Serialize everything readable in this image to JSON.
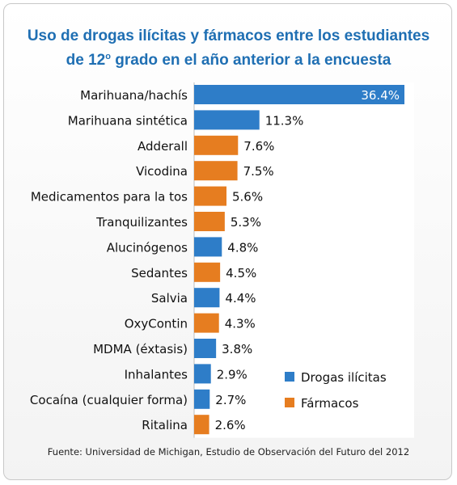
{
  "chart_data": {
    "type": "bar",
    "orientation": "horizontal",
    "title_line1": "Uso de drogas ilícitas y fármacos entre los estudiantes",
    "title_line2_before": "de 12",
    "title_line2_sup": "o",
    "title_line2_after": " grado en el año anterior a la encuesta",
    "categories": [
      "Marihuana/hachís",
      "Marihuana sintética",
      "Adderall",
      "Vicodina",
      "Medicamentos para la tos",
      "Tranquilizantes",
      "Alucinógenos",
      "Sedantes",
      "Salvia",
      "OxyContin",
      "MDMA (éxtasis)",
      "Inhalantes",
      "Cocaína (cualquier forma)",
      "Ritalina"
    ],
    "values": [
      36.4,
      11.3,
      7.6,
      7.5,
      5.6,
      5.3,
      4.8,
      4.5,
      4.4,
      4.3,
      3.8,
      2.9,
      2.7,
      2.6
    ],
    "value_labels": [
      "36.4%",
      "11.3%",
      "7.6%",
      "7.5%",
      "5.6%",
      "5.3%",
      "4.8%",
      "4.5%",
      "4.4%",
      "4.3%",
      "3.8%",
      "2.9%",
      "2.7%",
      "2.6%"
    ],
    "groups": [
      "drogas",
      "drogas",
      "farmacos",
      "farmacos",
      "farmacos",
      "farmacos",
      "drogas",
      "farmacos",
      "drogas",
      "farmacos",
      "drogas",
      "drogas",
      "drogas",
      "farmacos"
    ],
    "xlim": [
      0,
      36.4
    ],
    "legend": {
      "placement": "bottom-right",
      "entries": [
        {
          "key": "drogas",
          "label": "Drogas ilícitas",
          "color": "#2e7dc8"
        },
        {
          "key": "farmacos",
          "label": "Fármacos",
          "color": "#e67d20"
        }
      ]
    },
    "source": "Fuente: Universidad de Michigan, Estudio de Observación del Futuro del 2012"
  }
}
